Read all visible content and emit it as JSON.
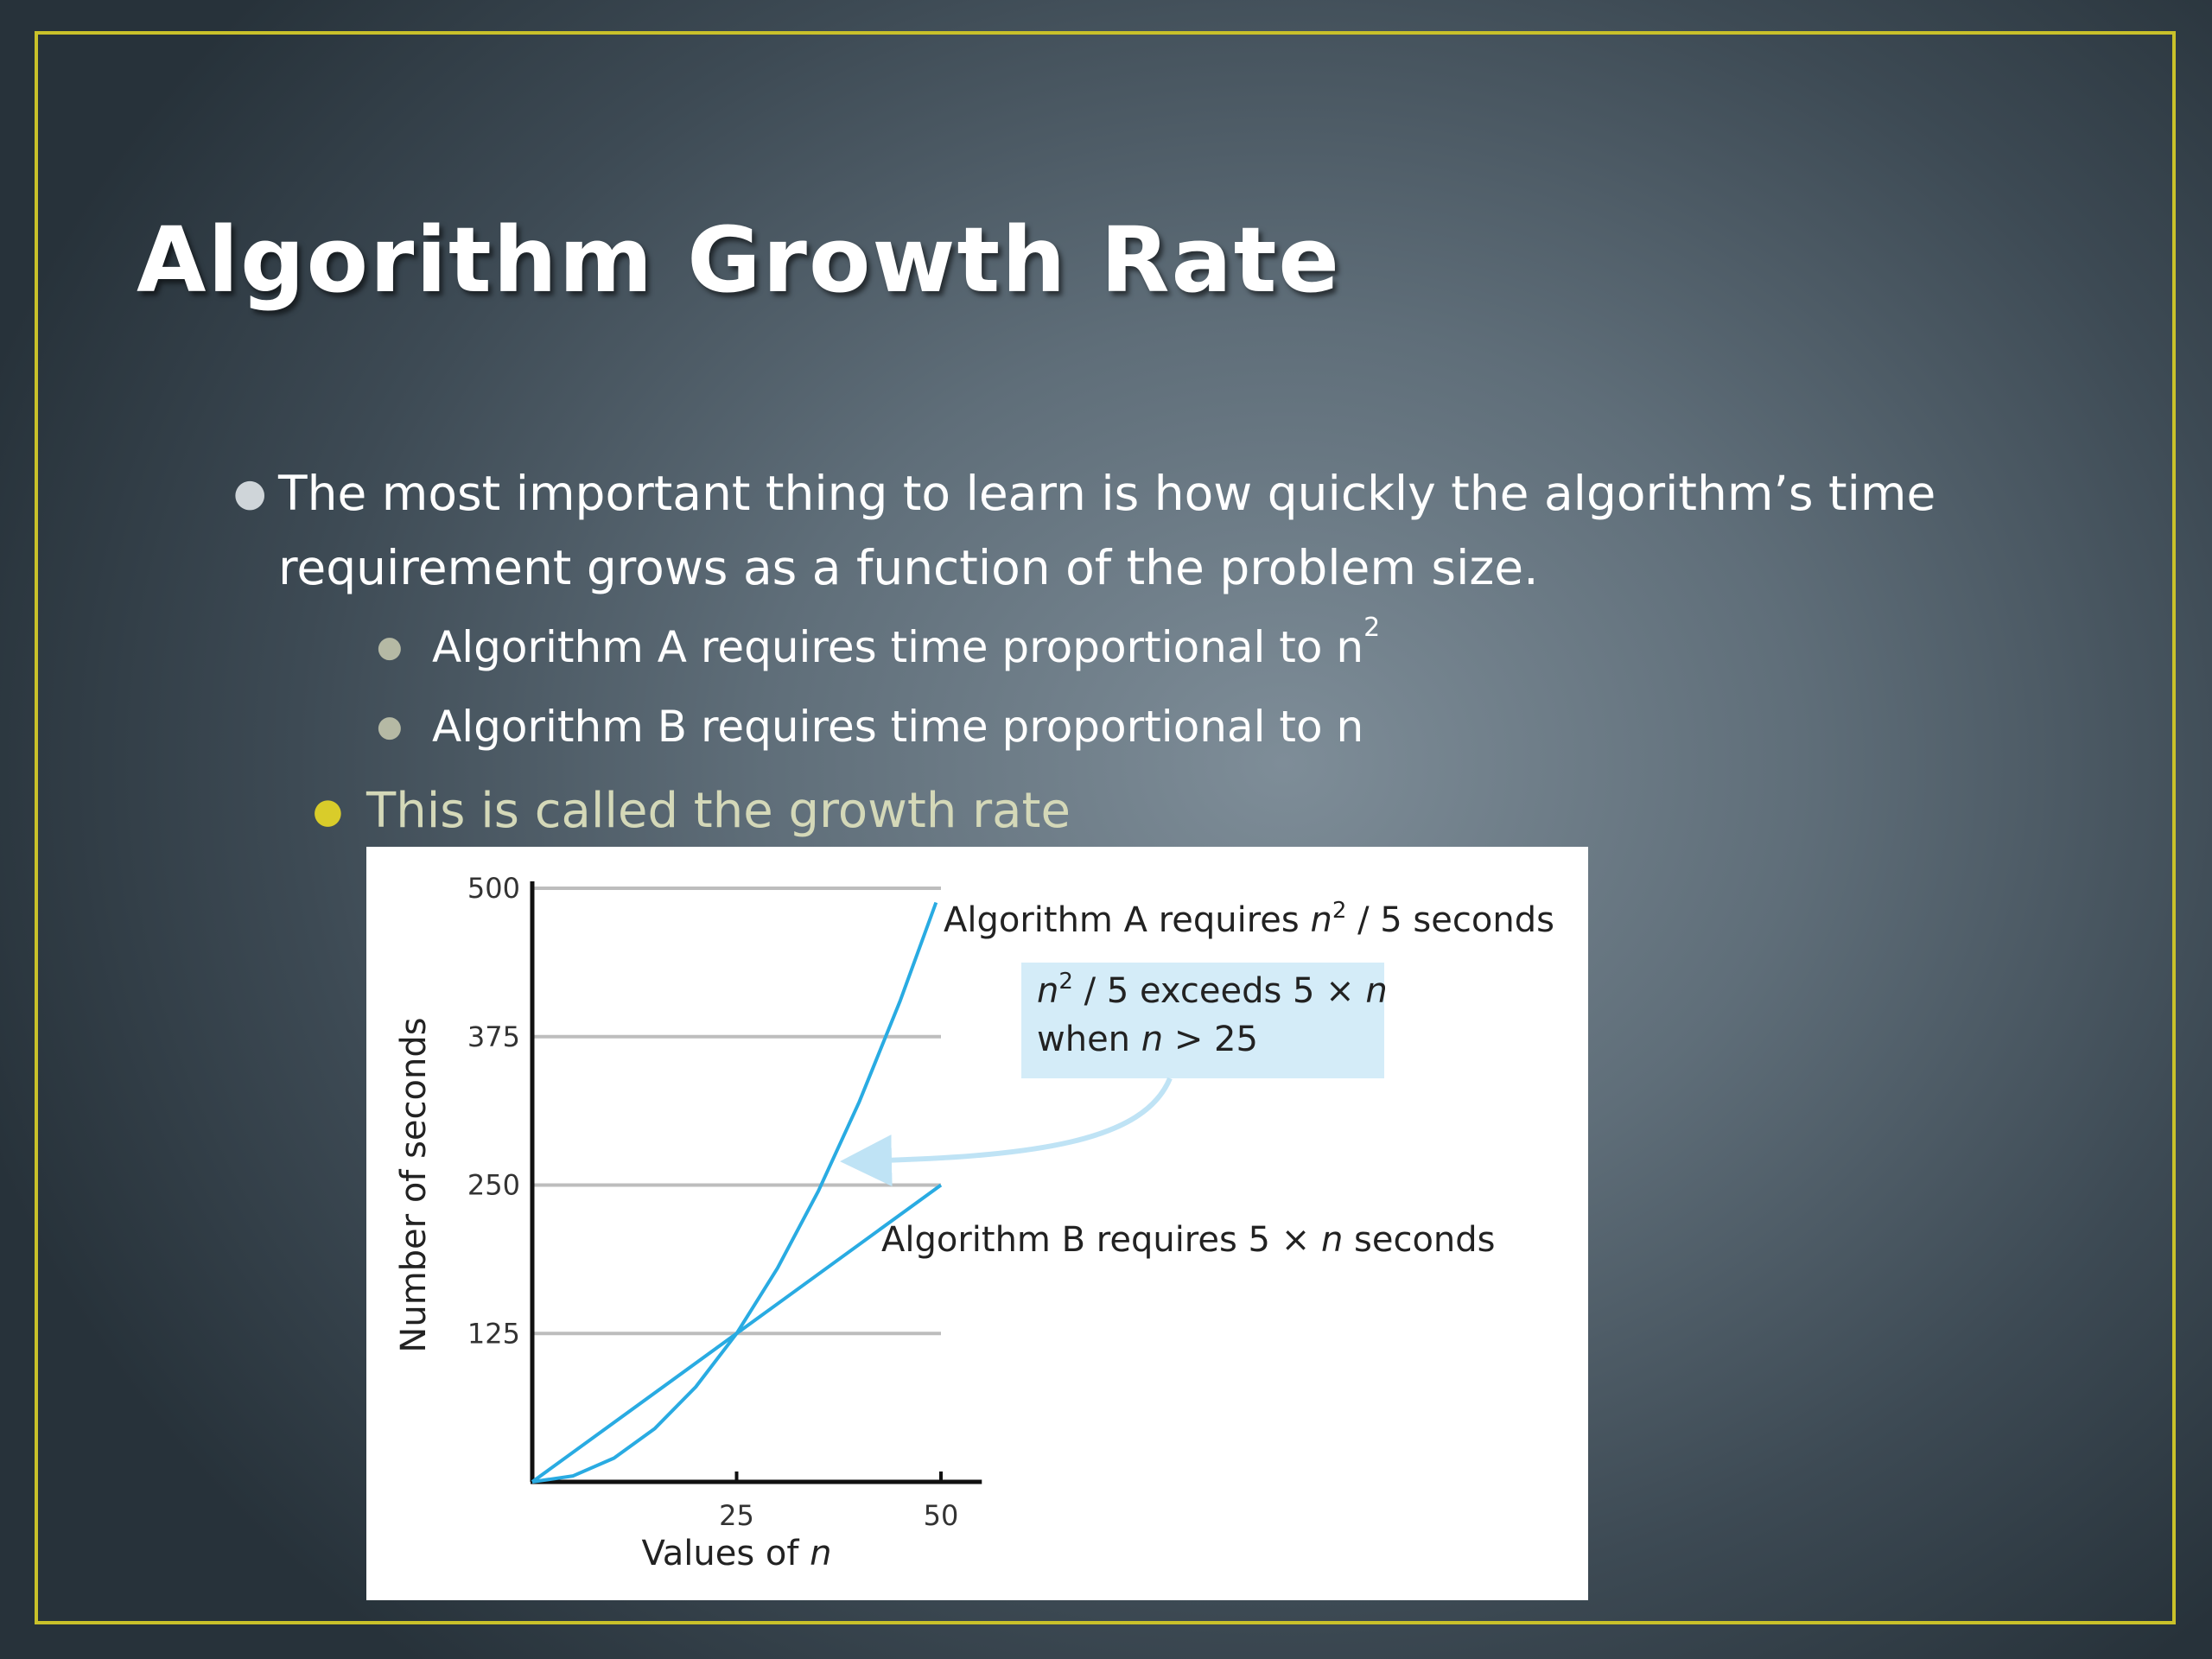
{
  "slide": {
    "title": "Algorithm Growth Rate",
    "bullet1": {
      "line1": "The most important thing to learn is how quickly the algorithm’s time",
      "line2": "requirement grows as a function of the problem size."
    },
    "sub1": {
      "text": "Algorithm A requires time proportional to n",
      "sup": "2"
    },
    "sub2": {
      "text": "Algorithm B requires time proportional to n"
    },
    "bullet3": "This is called the growth rate",
    "colors": {
      "frame": "#c9c12a",
      "bullet3_text": "#d4d8b8",
      "curve": "#29abe2",
      "callout_fill": "#d4ecf8",
      "grid": "#bdbdbd"
    }
  },
  "chart_data": {
    "type": "line",
    "xlabel": "Values of n",
    "ylabel": "Number of seconds",
    "xlim": [
      0,
      50
    ],
    "ylim": [
      0,
      500
    ],
    "x_ticks": [
      25,
      50
    ],
    "y_ticks": [
      125,
      250,
      375,
      500
    ],
    "grid": "horizontal at y ticks",
    "series": [
      {
        "name": "Algorithm A requires n² / 5 seconds",
        "formula": "n^2/5",
        "x": [
          0,
          5,
          10,
          15,
          20,
          25,
          30,
          35,
          40,
          45,
          49.4
        ],
        "y": [
          0,
          5,
          20,
          45,
          80,
          125,
          180,
          245,
          320,
          405,
          488
        ]
      },
      {
        "name": "Algorithm B requires 5 × n seconds",
        "formula": "5n",
        "x": [
          0,
          25,
          50
        ],
        "y": [
          0,
          125,
          250
        ]
      }
    ],
    "labels": {
      "series_a": {
        "prefix": "Algorithm A requires ",
        "var": "n",
        "sup": "2",
        "suffix": " / 5 seconds"
      },
      "series_b": {
        "prefix": "Algorithm B requires 5 × ",
        "var": "n",
        "suffix": " seconds"
      },
      "xlabel_prefix": "Values of ",
      "xlabel_var": "n"
    },
    "annotation": {
      "line1": {
        "var": "n",
        "sup": "2",
        "rest": " / 5 exceeds 5 × ",
        "var2": "n"
      },
      "line2": {
        "prefix": "when ",
        "var": "n",
        "suffix": " > 25"
      },
      "points_to": {
        "x": 37,
        "y": 270
      }
    }
  }
}
